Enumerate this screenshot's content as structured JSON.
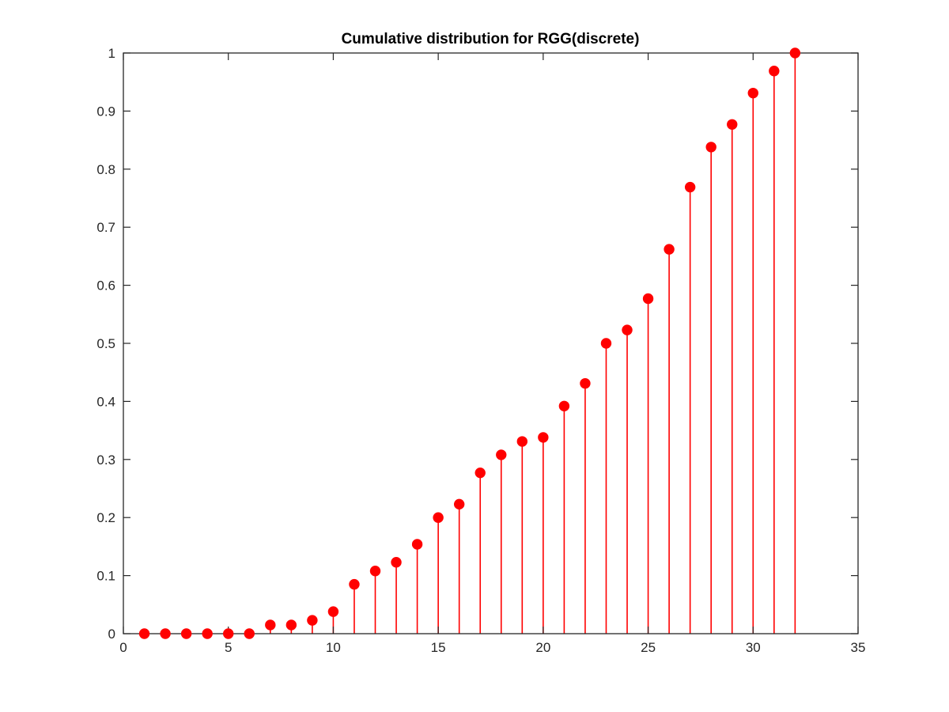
{
  "chart_data": {
    "type": "stem",
    "title": "Cumulative distribution for RGG(discrete)",
    "xlabel": "",
    "ylabel": "",
    "xlim": [
      0,
      35
    ],
    "ylim": [
      0,
      1
    ],
    "x_ticks": [
      0,
      5,
      10,
      15,
      20,
      25,
      30,
      35
    ],
    "y_ticks": [
      0,
      0.1,
      0.2,
      0.3,
      0.4,
      0.5,
      0.6,
      0.7,
      0.8,
      0.9,
      1
    ],
    "x_tick_labels": [
      "0",
      "5",
      "10",
      "15",
      "20",
      "25",
      "30",
      "35"
    ],
    "y_tick_labels": [
      "0",
      "0.1",
      "0.2",
      "0.3",
      "0.4",
      "0.5",
      "0.6",
      "0.7",
      "0.8",
      "0.9",
      "1"
    ],
    "grid": false,
    "marker": "filled-circle",
    "color": "#ff0000",
    "x": [
      1,
      2,
      3,
      4,
      5,
      6,
      7,
      8,
      9,
      10,
      11,
      12,
      13,
      14,
      15,
      16,
      17,
      18,
      19,
      20,
      21,
      22,
      23,
      24,
      25,
      26,
      27,
      28,
      29,
      30,
      31,
      32
    ],
    "values": [
      0,
      0,
      0,
      0,
      0,
      0,
      0.015,
      0.015,
      0.023,
      0.038,
      0.085,
      0.108,
      0.123,
      0.154,
      0.2,
      0.223,
      0.277,
      0.308,
      0.331,
      0.338,
      0.392,
      0.431,
      0.5,
      0.523,
      0.577,
      0.662,
      0.769,
      0.838,
      0.877,
      0.931,
      0.969,
      1.0
    ]
  }
}
